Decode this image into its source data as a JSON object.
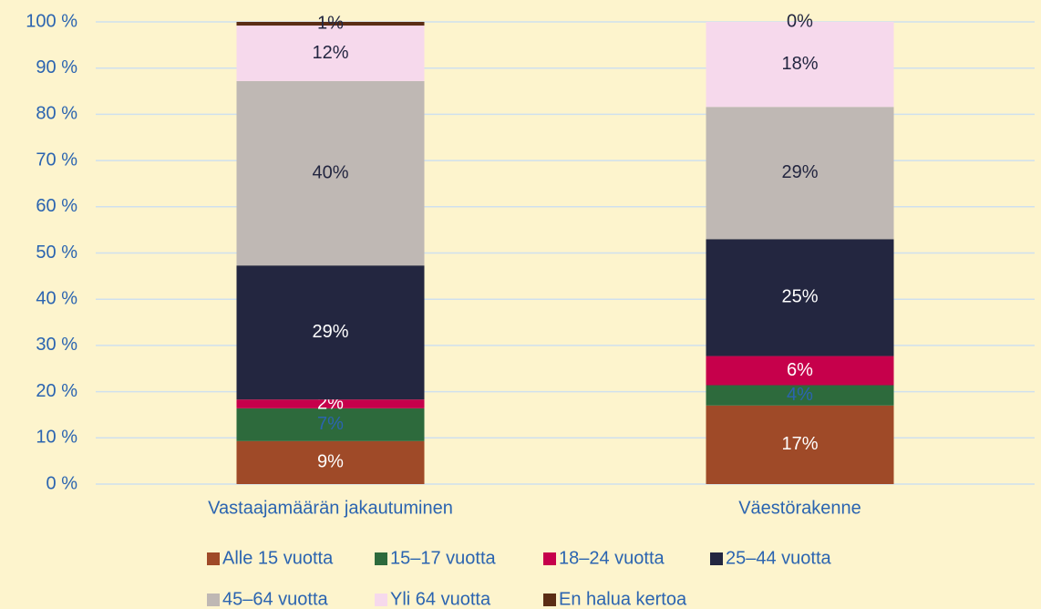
{
  "chart_data": {
    "type": "stacked_bar",
    "categories": [
      "Vastaajamäärän jakautuminen",
      "Väestörakenne"
    ],
    "series": [
      {
        "name": "Alle 15 vuotta",
        "color": "#9f4a28",
        "label_color": "#ffffff",
        "values": [
          9.3,
          17.0
        ],
        "value_labels": [
          "9%",
          "17%"
        ]
      },
      {
        "name": "15–17 vuotta",
        "color": "#2d6a3c",
        "label_color": "#2b64b0",
        "values": [
          7.1,
          4.4
        ],
        "value_labels": [
          "7%",
          "4%"
        ]
      },
      {
        "name": "18–24 vuotta",
        "color": "#c6004b",
        "label_color": "#ffffff",
        "values": [
          1.9,
          6.3
        ],
        "value_labels": [
          "2%",
          "6%"
        ]
      },
      {
        "name": "25–44 vuotta",
        "color": "#232640",
        "label_color": "#ffffff",
        "values": [
          29.0,
          25.3
        ],
        "value_labels": [
          "29%",
          "25%"
        ]
      },
      {
        "name": "45–64 vuotta",
        "color": "#bfb8b4",
        "label_color": "#232640",
        "values": [
          39.9,
          28.6
        ],
        "value_labels": [
          "40%",
          "29%"
        ]
      },
      {
        "name": "Yli 64 vuotta",
        "color": "#f6d9ec",
        "label_color": "#232640",
        "values": [
          12.0,
          18.4
        ],
        "value_labels": [
          "12%",
          "18%"
        ]
      },
      {
        "name": "En halua kertoa",
        "color": "#5b2d14",
        "label_color": "#232640",
        "values": [
          0.8,
          0
        ],
        "value_labels": [
          "1%",
          "0%"
        ]
      }
    ],
    "ylim": [
      0,
      100
    ],
    "yticks": [
      {
        "value": 0,
        "label": "0 %"
      },
      {
        "value": 10,
        "label": "10 %"
      },
      {
        "value": 20,
        "label": "20 %"
      },
      {
        "value": 30,
        "label": "30 %"
      },
      {
        "value": 40,
        "label": "40 %"
      },
      {
        "value": 50,
        "label": "50 %"
      },
      {
        "value": 60,
        "label": "60 %"
      },
      {
        "value": 70,
        "label": "70 %"
      },
      {
        "value": 80,
        "label": "80 %"
      },
      {
        "value": 90,
        "label": "90 %"
      },
      {
        "value": 100,
        "label": "100 %"
      }
    ],
    "grid": true
  }
}
